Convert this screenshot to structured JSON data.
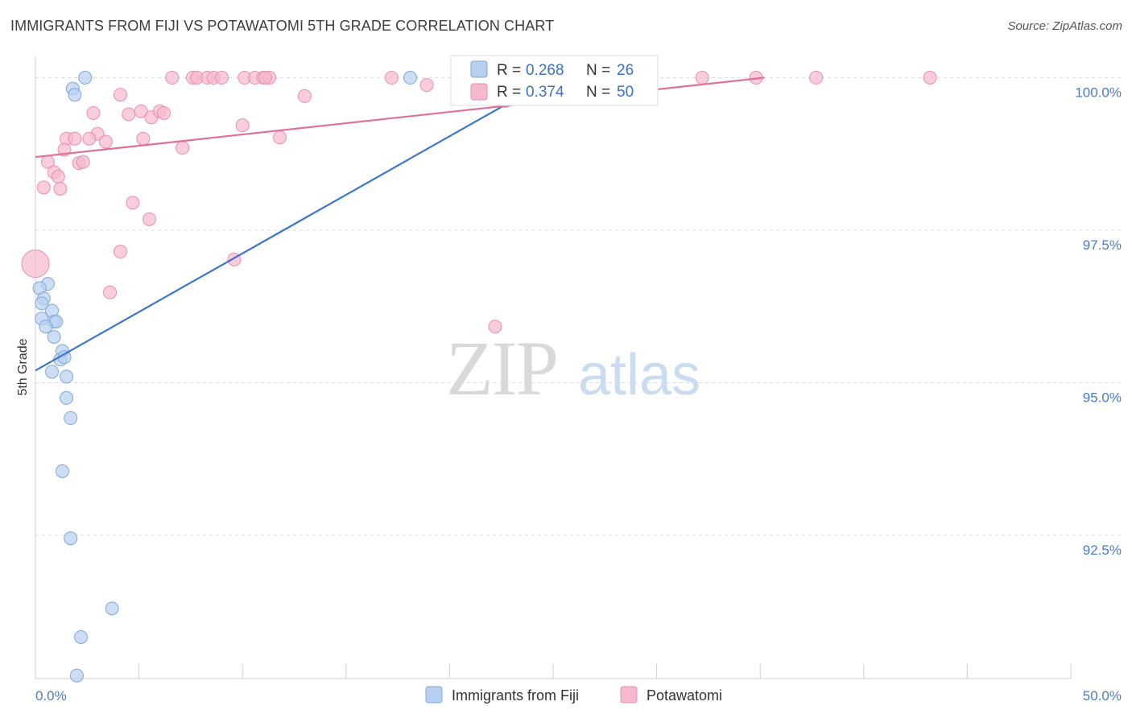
{
  "title": "IMMIGRANTS FROM FIJI VS POTAWATOMI 5TH GRADE CORRELATION CHART",
  "source": "Source: ZipAtlas.com",
  "watermark": {
    "zip": "ZIP",
    "atlas": "atlas"
  },
  "colors": {
    "fiji": "#3a76cc",
    "fiji_fill": "#b8d0f0",
    "potawatomi": "#e0709a",
    "potawatomi_fill": "#f6b8cc",
    "tick_text": "#4a7cc7",
    "grid": "#dddddd"
  },
  "legend": {
    "rows": [
      {
        "r_label": "R =",
        "r_value": "0.268",
        "n_label": "N =",
        "n_value": "26"
      },
      {
        "r_label": "R =",
        "r_value": "0.374",
        "n_label": "N =",
        "n_value": "50"
      }
    ]
  },
  "chart_data": {
    "type": "scatter",
    "title": "IMMIGRANTS FROM FIJI VS POTAWATOMI 5TH GRADE CORRELATION CHART",
    "xlabel": "",
    "ylabel": "5th Grade",
    "xlim": [
      0,
      50
    ],
    "ylim": [
      90.15,
      100.35
    ],
    "x_tick_labels": [
      "0.0%",
      "50.0%"
    ],
    "y_ticks": [
      100.0,
      97.5,
      95.0,
      92.5
    ],
    "y_tick_labels": [
      "100.0%",
      "97.5%",
      "95.0%",
      "92.5%"
    ],
    "x_minor_ticks": [
      0,
      5,
      10,
      15,
      20,
      25,
      30,
      35,
      40,
      45,
      50
    ],
    "grid": true,
    "series": [
      {
        "name": "Immigrants from Fiji",
        "R": 0.268,
        "N": 26,
        "trend": {
          "x0": 0.0,
          "y0": 95.2,
          "x1": 25.0,
          "y1": 100.0
        },
        "points": [
          [
            2.4,
            100.0
          ],
          [
            18.1,
            100.0
          ],
          [
            1.8,
            99.82
          ],
          [
            1.9,
            99.72
          ],
          [
            0.6,
            96.62
          ],
          [
            0.2,
            96.55
          ],
          [
            0.4,
            96.38
          ],
          [
            0.3,
            96.3
          ],
          [
            0.8,
            96.18
          ],
          [
            0.3,
            96.05
          ],
          [
            0.9,
            96.0
          ],
          [
            1.0,
            96.0
          ],
          [
            0.5,
            95.92
          ],
          [
            0.9,
            95.75
          ],
          [
            1.3,
            95.52
          ],
          [
            1.2,
            95.38
          ],
          [
            0.8,
            95.18
          ],
          [
            1.5,
            95.1
          ],
          [
            1.5,
            94.75
          ],
          [
            1.7,
            94.42
          ],
          [
            1.3,
            93.55
          ],
          [
            1.7,
            92.45
          ],
          [
            3.7,
            91.3
          ],
          [
            2.2,
            90.83
          ],
          [
            2.0,
            90.2
          ],
          [
            1.4,
            95.42
          ]
        ]
      },
      {
        "name": "Potawatomi",
        "R": 0.374,
        "N": 50,
        "trend": {
          "x0": 0.0,
          "y0": 98.7,
          "x1": 35.2,
          "y1": 100.0
        },
        "points": [
          [
            6.6,
            100.0
          ],
          [
            7.6,
            100.0
          ],
          [
            7.8,
            100.0
          ],
          [
            8.3,
            100.0
          ],
          [
            8.6,
            100.0
          ],
          [
            9.0,
            100.0
          ],
          [
            10.1,
            100.0
          ],
          [
            10.6,
            100.0
          ],
          [
            11.0,
            100.0
          ],
          [
            11.3,
            100.0
          ],
          [
            11.1,
            100.0
          ],
          [
            17.2,
            100.0
          ],
          [
            32.2,
            100.0
          ],
          [
            34.8,
            100.0
          ],
          [
            37.7,
            100.0
          ],
          [
            43.2,
            100.0
          ],
          [
            18.9,
            99.88
          ],
          [
            4.1,
            99.72
          ],
          [
            13.0,
            99.7
          ],
          [
            22.7,
            99.62
          ],
          [
            2.8,
            99.42
          ],
          [
            4.5,
            99.4
          ],
          [
            5.1,
            99.45
          ],
          [
            5.6,
            99.35
          ],
          [
            6.0,
            99.45
          ],
          [
            6.2,
            99.42
          ],
          [
            10.0,
            99.22
          ],
          [
            3.0,
            99.08
          ],
          [
            1.5,
            99.0
          ],
          [
            1.9,
            99.0
          ],
          [
            2.6,
            99.0
          ],
          [
            3.4,
            98.95
          ],
          [
            5.2,
            99.0
          ],
          [
            11.8,
            99.02
          ],
          [
            1.4,
            98.82
          ],
          [
            7.1,
            98.85
          ],
          [
            0.6,
            98.62
          ],
          [
            2.1,
            98.6
          ],
          [
            2.3,
            98.62
          ],
          [
            0.9,
            98.45
          ],
          [
            1.1,
            98.38
          ],
          [
            0.4,
            98.2
          ],
          [
            1.2,
            98.18
          ],
          [
            4.7,
            97.95
          ],
          [
            5.5,
            97.68
          ],
          [
            4.1,
            97.15
          ],
          [
            9.6,
            97.02
          ],
          [
            0.0,
            96.95
          ],
          [
            3.6,
            96.48
          ],
          [
            22.2,
            95.92
          ]
        ]
      }
    ]
  }
}
